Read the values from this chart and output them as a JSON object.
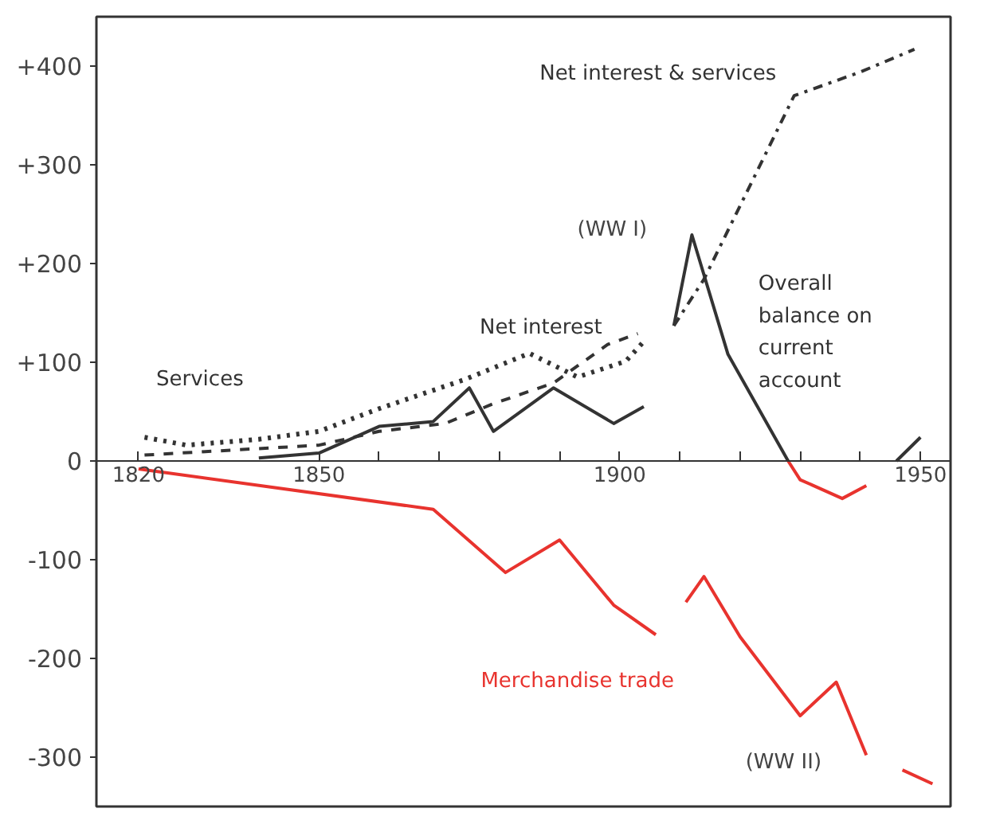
{
  "chart_data": {
    "type": "line",
    "xlim": [
      1813,
      1955
    ],
    "ylim": [
      -350,
      450
    ],
    "xticks": [
      1820,
      1850,
      {
        "value": 1860,
        "label": null
      },
      {
        "value": 1870,
        "label": null
      },
      {
        "value": 1880,
        "label": null
      },
      {
        "value": 1890,
        "label": null
      },
      1900,
      {
        "value": 1910,
        "label": null
      },
      {
        "value": 1920,
        "label": null
      },
      {
        "value": 1930,
        "label": null
      },
      {
        "value": 1940,
        "label": null
      },
      1950
    ],
    "yticks": [
      {
        "value": 400,
        "label": "+400"
      },
      {
        "value": 300,
        "label": "+300"
      },
      {
        "value": 200,
        "label": "+200"
      },
      {
        "value": 100,
        "label": "+100"
      },
      0,
      -100,
      -200,
      -300
    ],
    "grid": false,
    "legend": false,
    "series": [
      {
        "name": "Services",
        "color": "#333333",
        "line_style": "dotted",
        "x": [
          1821,
          1828,
          1840,
          1850,
          1860,
          1874,
          1885,
          1893,
          1901,
          1904
        ],
        "values": [
          24,
          16,
          22,
          30,
          53,
          82,
          109,
          85,
          101,
          121
        ]
      },
      {
        "name": "Net interest",
        "color": "#333333",
        "line_style": "dashed",
        "x": [
          1821,
          1850,
          1860,
          1871,
          1879,
          1889,
          1898,
          1903
        ],
        "values": [
          6,
          16,
          30,
          38,
          58,
          79,
          118,
          129
        ]
      },
      {
        "name": "Net interest & services",
        "color": "#333333",
        "line_style": "dashdot",
        "x": [
          1909,
          1914,
          1929,
          1940,
          1949
        ],
        "values": [
          137,
          184,
          370,
          394,
          417
        ]
      },
      {
        "name": "Overall\nbalance on\ncurrent\naccount",
        "color": "#333333",
        "line_style": "solid",
        "x": [
          1840,
          1850,
          1860,
          1869,
          1875,
          1879,
          1889,
          1899,
          1904,
          1906,
          1909,
          1912,
          1918,
          1928,
          1935,
          1946,
          1950
        ],
        "values": [
          3,
          8,
          35,
          40,
          74,
          30,
          74,
          38,
          55,
          null,
          137,
          229,
          108,
          0,
          null,
          0,
          24
        ]
      },
      {
        "color": "#e8332e",
        "line_style": "solid",
        "x": [
          1928,
          1930,
          1937,
          1941
        ],
        "values": [
          0,
          -19,
          -38,
          -25
        ]
      },
      {
        "name": "Merchandise trade",
        "color": "#e8332e",
        "line_style": "solid",
        "x": [
          1820,
          1869,
          1881,
          1890,
          1899,
          1906,
          1908,
          1911,
          1914,
          1920,
          1930,
          1936,
          1941,
          1944,
          1947,
          1952
        ],
        "values": [
          -8,
          -49,
          -113,
          -80,
          -146,
          -176,
          null,
          -143,
          -117,
          -178,
          -258,
          -224,
          -298,
          null,
          -313,
          -327
        ]
      }
    ],
    "annotations": [
      "(WW I)",
      "(WW II)"
    ]
  }
}
